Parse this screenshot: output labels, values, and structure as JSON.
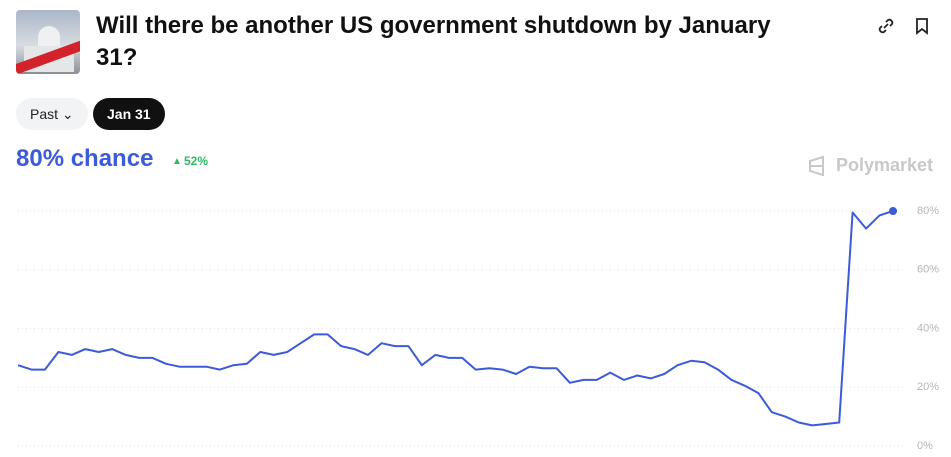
{
  "header": {
    "title": "Will there be another US government shutdown by January 31?"
  },
  "filters": [
    "Past",
    "Jan 31"
  ],
  "chance": "80% chance",
  "change": "52%",
  "brand": "Polymarket",
  "chart_data": {
    "type": "line",
    "series": [
      {
        "color": "#3b5bdb",
        "values": [
          27.5,
          26,
          26,
          32,
          31,
          33,
          32,
          33,
          31,
          30,
          30,
          28,
          27,
          27,
          27,
          26,
          27.5,
          28,
          32,
          31,
          32,
          35,
          38,
          38,
          34,
          33,
          31,
          35,
          34,
          34,
          27.5,
          31,
          30,
          30,
          26,
          26.5,
          26,
          24.5,
          27,
          26.5,
          26.5,
          21.5,
          22.5,
          22.5,
          25,
          22.5,
          24,
          23,
          24.5,
          27.5,
          29,
          28.5,
          26,
          22.5,
          20.5,
          18,
          11.5,
          10,
          8,
          7,
          7.5,
          8,
          79.5,
          74,
          78.5,
          80
        ]
      }
    ],
    "ylim": [
      0,
      80
    ],
    "yticks": [
      {
        "value": 0,
        "label": "0%"
      },
      {
        "value": 20,
        "label": "20%"
      },
      {
        "value": 40,
        "label": "40%"
      },
      {
        "value": 60,
        "label": "60%"
      },
      {
        "value": 80,
        "label": "80%"
      }
    ],
    "grid": true
  }
}
